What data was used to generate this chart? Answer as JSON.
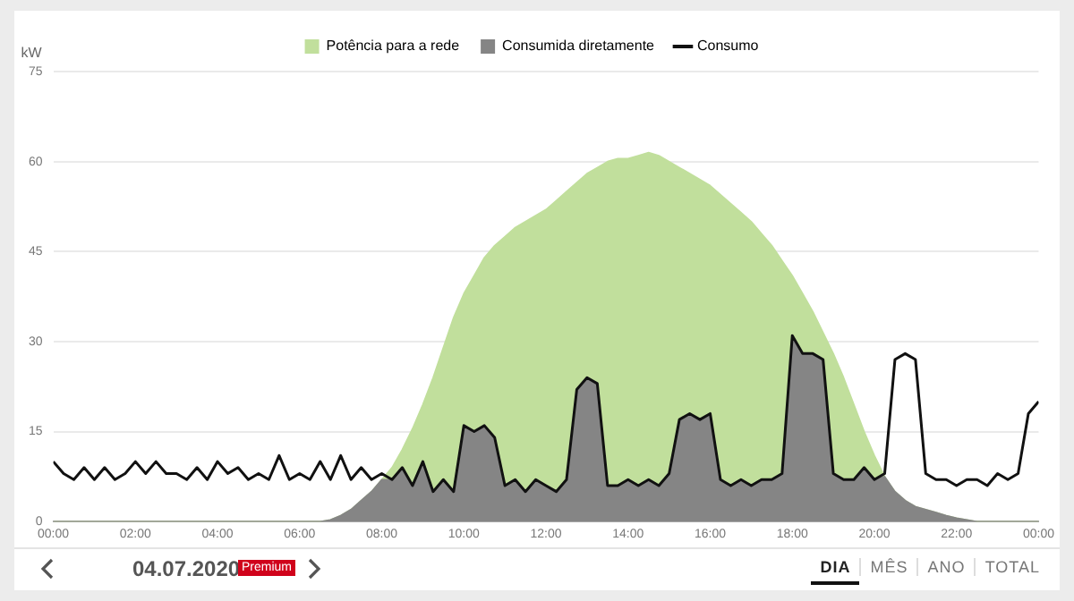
{
  "chart_data": {
    "type": "area",
    "ylabel": "kW",
    "stacked": true,
    "legend": "top",
    "grid": "y",
    "marker": "none",
    "line_style": "solid",
    "x": [
      0,
      0.25,
      0.5,
      0.75,
      1,
      1.25,
      1.5,
      1.75,
      2,
      2.25,
      2.5,
      2.75,
      3,
      3.25,
      3.5,
      3.75,
      4,
      4.25,
      4.5,
      4.75,
      5,
      5.25,
      5.5,
      5.75,
      6,
      6.25,
      6.5,
      6.75,
      7,
      7.25,
      7.5,
      7.75,
      8,
      8.25,
      8.5,
      8.75,
      9,
      9.25,
      9.5,
      9.75,
      10,
      10.25,
      10.5,
      10.75,
      11,
      11.25,
      11.5,
      11.75,
      12,
      12.25,
      12.5,
      12.75,
      13,
      13.25,
      13.5,
      13.75,
      14,
      14.25,
      14.5,
      14.75,
      15,
      15.25,
      15.5,
      15.75,
      16,
      16.25,
      16.5,
      16.75,
      17,
      17.25,
      17.5,
      17.75,
      18,
      18.25,
      18.5,
      18.75,
      19,
      19.25,
      19.5,
      19.75,
      20,
      20.25,
      20.5,
      20.75,
      21,
      21.25,
      21.5,
      21.75,
      22,
      22.25,
      22.5,
      22.75,
      23,
      23.25,
      23.5,
      23.75,
      24
    ],
    "xlim": [
      0,
      24
    ],
    "xticks": [
      {
        "value": 0,
        "label": "00:00"
      },
      {
        "value": 2,
        "label": "02:00"
      },
      {
        "value": 4,
        "label": "04:00"
      },
      {
        "value": 6,
        "label": "06:00"
      },
      {
        "value": 8,
        "label": "08:00"
      },
      {
        "value": 10,
        "label": "10:00"
      },
      {
        "value": 12,
        "label": "12:00"
      },
      {
        "value": 14,
        "label": "14:00"
      },
      {
        "value": 16,
        "label": "16:00"
      },
      {
        "value": 18,
        "label": "18:00"
      },
      {
        "value": 20,
        "label": "20:00"
      },
      {
        "value": 22,
        "label": "22:00"
      },
      {
        "value": 24,
        "label": "00:00"
      }
    ],
    "ylim": [
      0,
      75
    ],
    "yticks": [
      0,
      15,
      30,
      45,
      60,
      75
    ],
    "series": [
      {
        "name": "Consumida diretamente",
        "color": "#858585",
        "values": [
          0,
          0,
          0,
          0,
          0,
          0,
          0,
          0,
          0,
          0,
          0,
          0,
          0,
          0,
          0,
          0,
          0,
          0,
          0,
          0,
          0,
          0,
          0,
          0,
          0,
          0,
          0,
          0.3,
          1,
          2,
          3.5,
          5,
          7,
          7,
          9,
          6,
          10,
          5,
          7,
          5,
          16,
          15,
          16,
          14,
          6,
          7,
          5,
          7,
          6,
          5,
          7,
          22,
          24,
          23,
          6,
          6,
          7,
          6,
          7,
          6,
          8,
          17,
          18,
          17,
          18,
          7,
          6,
          7,
          6,
          7,
          7,
          8,
          31,
          28,
          28,
          27,
          8,
          7,
          7,
          9,
          7,
          7.5,
          5,
          3.5,
          2.5,
          2,
          1.5,
          1,
          0.6,
          0.3,
          0,
          0,
          0,
          0,
          0,
          0,
          0
        ]
      },
      {
        "name": "Potência para a rede",
        "color": "#c1df9c",
        "values": [
          0,
          0,
          0,
          0,
          0,
          0,
          0,
          0,
          0,
          0,
          0,
          0,
          0,
          0,
          0,
          0,
          0,
          0,
          0,
          0,
          0,
          0,
          0,
          0,
          0,
          0,
          0,
          0,
          0,
          0,
          0,
          0,
          0,
          2,
          3,
          9.5,
          9.5,
          19,
          22,
          29,
          22,
          26,
          28,
          32,
          41.5,
          42,
          45,
          44,
          46,
          48.5,
          48,
          34.5,
          34,
          36,
          54,
          54.5,
          53.5,
          55,
          54.5,
          55,
          52,
          42,
          40,
          40,
          38,
          47.5,
          47,
          44.5,
          44,
          41,
          39,
          35.5,
          10,
          10,
          7,
          4.5,
          20,
          17,
          12.5,
          6,
          4,
          0,
          0,
          0,
          0,
          0,
          0,
          0,
          0,
          0,
          0,
          0,
          0,
          0,
          0,
          0,
          0
        ]
      },
      {
        "name": "Consumo",
        "type": "line",
        "color": "#111111",
        "values": [
          10,
          8,
          7,
          9,
          7,
          9,
          7,
          8,
          10,
          8,
          10,
          8,
          8,
          7,
          9,
          7,
          10,
          8,
          9,
          7,
          8,
          7,
          11,
          7,
          8,
          7,
          10,
          7,
          11,
          7,
          9,
          7,
          8,
          7,
          9,
          6,
          10,
          5,
          7,
          5,
          16,
          15,
          16,
          14,
          6,
          7,
          5,
          7,
          6,
          5,
          7,
          22,
          24,
          23,
          6,
          6,
          7,
          6,
          7,
          6,
          8,
          17,
          18,
          17,
          18,
          7,
          6,
          7,
          6,
          7,
          7,
          8,
          31,
          28,
          28,
          27,
          8,
          7,
          7,
          9,
          7,
          8,
          27,
          28,
          27,
          8,
          7,
          7,
          6,
          7,
          7,
          6,
          8,
          7,
          8,
          18,
          20
        ]
      }
    ],
    "annotations": [
      "04.07.2020",
      "Premium",
      "DIA",
      "MÊS",
      "ANO",
      "TOTAL"
    ]
  }
}
